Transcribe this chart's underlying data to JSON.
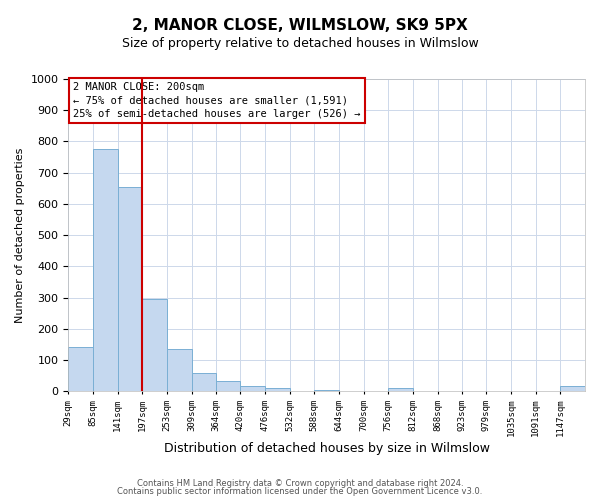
{
  "title": "2, MANOR CLOSE, WILMSLOW, SK9 5PX",
  "subtitle": "Size of property relative to detached houses in Wilmslow",
  "xlabel": "Distribution of detached houses by size in Wilmslow",
  "ylabel": "Number of detached properties",
  "bin_edges": [
    29,
    85,
    141,
    197,
    253,
    309,
    364,
    420,
    476,
    532,
    588,
    644,
    700,
    756,
    812,
    868,
    923,
    979,
    1035,
    1091,
    1147,
    1203
  ],
  "bar_heights": [
    140,
    775,
    655,
    295,
    135,
    57,
    32,
    18,
    10,
    0,
    5,
    0,
    0,
    10,
    0,
    0,
    0,
    0,
    0,
    0,
    15
  ],
  "bar_color": "#c5d8ef",
  "bar_edge_color": "#7aafd4",
  "vline_x": 197,
  "vline_color": "#cc0000",
  "ylim": [
    0,
    1000
  ],
  "annotation_title": "2 MANOR CLOSE: 200sqm",
  "annotation_line1": "← 75% of detached houses are smaller (1,591)",
  "annotation_line2": "25% of semi-detached houses are larger (526) →",
  "annotation_box_color": "#cc0000",
  "footnote1": "Contains HM Land Registry data © Crown copyright and database right 2024.",
  "footnote2": "Contains public sector information licensed under the Open Government Licence v3.0.",
  "background_color": "#ffffff",
  "grid_color": "#cdd8ea"
}
